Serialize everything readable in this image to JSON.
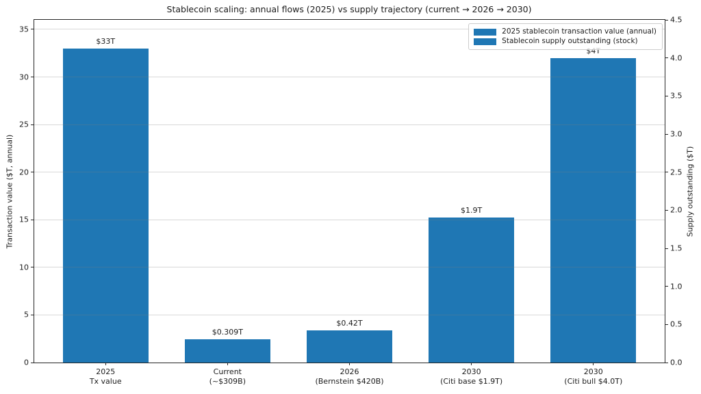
{
  "colors": {
    "bar": "#1f77b4",
    "grid": "rgba(127,127,127,0.3)",
    "spine": "#262626",
    "text": "#1a1a1a",
    "legend_border": "#cccccc",
    "background": "#ffffff"
  },
  "chart_data": {
    "type": "bar",
    "title": "Stablecoin scaling: annual flows (2025) vs supply trajectory (current → 2026 → 2030)",
    "categories": [
      "2025\nTx value",
      "Current\n(~$309B)",
      "2026\n(Bernstein $420B)",
      "2030\n(Citi base $1.9T)",
      "2030\n(Citi bull $4.0T)"
    ],
    "bars": [
      {
        "category_index": 0,
        "value": 33,
        "axis": "left",
        "label": "$33T",
        "series": 0
      },
      {
        "category_index": 1,
        "value": 0.309,
        "axis": "right",
        "label": "$0.309T",
        "series": 1
      },
      {
        "category_index": 2,
        "value": 0.42,
        "axis": "right",
        "label": "$0.42T",
        "series": 1
      },
      {
        "category_index": 3,
        "value": 1.9,
        "axis": "right",
        "label": "$1.9T",
        "series": 1
      },
      {
        "category_index": 4,
        "value": 4.0,
        "axis": "right",
        "label": "$4T",
        "series": 1
      }
    ],
    "left_axis": {
      "label": "Transaction value ($T, annual)",
      "ticks": [
        0,
        5,
        10,
        15,
        20,
        25,
        30,
        35
      ],
      "min": 0,
      "max": 36
    },
    "right_axis": {
      "label": "Supply outstanding ($T)",
      "ticks": [
        "0.0",
        "0.5",
        "1.0",
        "1.5",
        "2.0",
        "2.5",
        "3.0",
        "3.5",
        "4.0",
        "4.5"
      ],
      "min": 0,
      "max": 4.5
    },
    "legend": [
      "2025 stablecoin transaction value (annual)",
      "Stablecoin supply outstanding (stock)"
    ],
    "legend_position": "upper right",
    "grid": true
  }
}
